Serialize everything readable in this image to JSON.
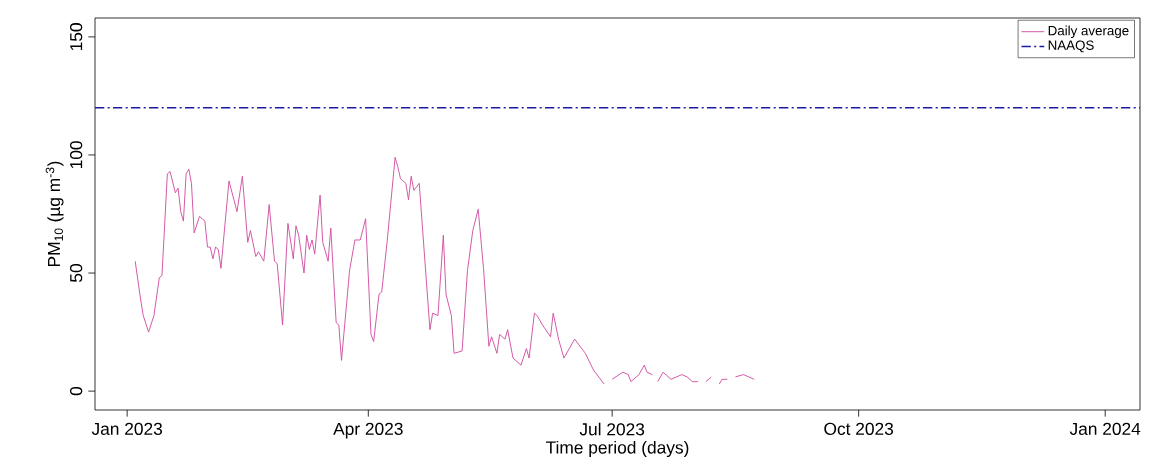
{
  "chart_data": {
    "type": "line",
    "xlabel": "Time period (days)",
    "ylabel": "PM$_{10}$ (µg m$^{-3}$)",
    "x": [
      "2023-01-04",
      "2023-01-06",
      "2023-01-07",
      "2023-01-09",
      "2023-01-11",
      "2023-01-13",
      "2023-01-14",
      "2023-01-16",
      "2023-01-17",
      "2023-01-19",
      "2023-01-20",
      "2023-01-21",
      "2023-01-22",
      "2023-01-23",
      "2023-01-24",
      "2023-01-25",
      "2023-01-26",
      "2023-01-28",
      "2023-01-30",
      "2023-01-31",
      "2023-02-01",
      "2023-02-02",
      "2023-02-03",
      "2023-02-04",
      "2023-02-05",
      "2023-02-08",
      "2023-02-11",
      "2023-02-13",
      "2023-02-15",
      "2023-02-16",
      "2023-02-18",
      "2023-02-19",
      "2023-02-21",
      "2023-02-23",
      "2023-02-25",
      "2023-02-26",
      "2023-02-28",
      "2023-03-02",
      "2023-03-04",
      "2023-03-05",
      "2023-03-06",
      "2023-03-08",
      "2023-03-09",
      "2023-03-10",
      "2023-03-11",
      "2023-03-12",
      "2023-03-14",
      "2023-03-15",
      "2023-03-17",
      "2023-03-18",
      "2023-03-20",
      "2023-03-21",
      "2023-03-22",
      "2023-03-25",
      "2023-03-27",
      "2023-03-29",
      "2023-03-31",
      "2023-04-02",
      "2023-04-03",
      "2023-04-05",
      "2023-04-06",
      "2023-04-08",
      "2023-04-11",
      "2023-04-12",
      "2023-04-13",
      "2023-04-15",
      "2023-04-16",
      "2023-04-17",
      "2023-04-18",
      "2023-04-20",
      "2023-04-24",
      "2023-04-25",
      "2023-04-27",
      "2023-04-29",
      "2023-04-30",
      "2023-05-02",
      "2023-05-03",
      "2023-05-06",
      "2023-05-08",
      "2023-05-10",
      "2023-05-12",
      "2023-05-14",
      "2023-05-16",
      "2023-05-17",
      "2023-05-19",
      "2023-05-20",
      "2023-05-22",
      "2023-05-23",
      "2023-05-25",
      "2023-05-28",
      "2023-05-30",
      "2023-05-31",
      "2023-06-02",
      "2023-06-03",
      "2023-06-05",
      "2023-06-08",
      "2023-06-09",
      "2023-06-11",
      "2023-06-13",
      "2023-06-17",
      "2023-06-21",
      "2023-06-24",
      "2023-06-28",
      "2023-06-29",
      "2023-07-01",
      "2023-07-05",
      "2023-07-07",
      "2023-07-08",
      "2023-07-11",
      "2023-07-13",
      "2023-07-14",
      "2023-07-16",
      "2023-07-17",
      "2023-07-18",
      "2023-07-20",
      "2023-07-23",
      "2023-07-27",
      "2023-07-29",
      "2023-07-31",
      "2023-08-02",
      "2023-08-03",
      "2023-08-05",
      "2023-08-07",
      "2023-08-08",
      "2023-08-10",
      "2023-08-11",
      "2023-08-13",
      "2023-08-14",
      "2023-08-16",
      "2023-08-19",
      "2023-08-21",
      "2023-08-23"
    ],
    "series": [
      {
        "name": "Daily average",
        "color": "#d04fa0",
        "values": [
          55,
          39,
          32,
          25,
          32,
          48,
          49,
          92,
          93,
          84,
          86,
          76,
          72,
          92,
          94,
          88,
          67,
          74,
          72,
          61,
          61,
          56,
          61,
          60,
          52,
          89,
          76,
          91,
          63,
          68,
          57,
          59,
          55,
          79,
          55,
          54,
          28,
          71,
          56,
          70,
          66,
          50,
          66,
          60,
          64,
          58,
          83,
          63,
          55,
          69,
          29,
          28,
          13,
          51,
          64,
          64,
          73,
          24,
          21,
          41,
          42,
          63,
          99,
          95,
          90,
          88,
          81,
          91,
          85,
          88,
          26,
          33,
          32,
          66,
          41,
          32,
          16,
          17,
          51,
          68,
          77,
          52,
          19,
          23,
          16,
          24,
          22,
          26,
          14,
          11,
          18,
          14,
          33,
          32,
          28,
          23,
          33,
          22,
          14,
          22,
          16,
          9,
          3,
          null,
          5,
          8,
          7,
          4,
          7,
          11,
          8,
          7,
          null,
          4,
          8,
          5,
          7,
          6,
          4,
          4,
          null,
          4,
          6,
          null,
          3,
          5,
          5,
          null,
          6,
          7,
          6,
          5
        ]
      }
    ],
    "xlim": [
      "2022-12-20",
      "2024-01-14"
    ],
    "xticks": [
      {
        "value": "2023-01-01",
        "label": "Jan 2023"
      },
      {
        "value": "2023-04-01",
        "label": "Apr 2023"
      },
      {
        "value": "2023-07-01",
        "label": "Jul 2023"
      },
      {
        "value": "2023-10-01",
        "label": "Oct 2023"
      },
      {
        "value": "2024-01-01",
        "label": "Jan 2024"
      }
    ],
    "ylim": [
      -8,
      158
    ],
    "yticks": [
      0,
      50,
      100,
      150
    ],
    "ref_lines": [
      {
        "axis": "y",
        "value": 120,
        "label": "NAAQS",
        "color": "#1a1aa0",
        "line_style": "dashed"
      }
    ],
    "grid": false,
    "legend": "top right",
    "line_style": "solid",
    "marker": "none"
  }
}
